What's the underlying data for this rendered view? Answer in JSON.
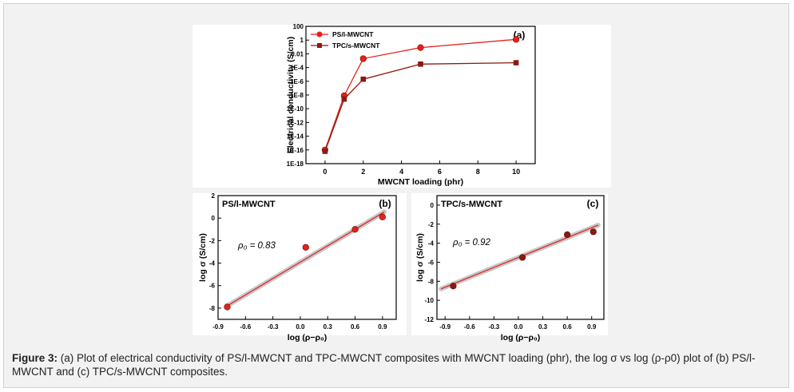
{
  "caption": {
    "label": "Figure 3:",
    "text": " (a) Plot of electrical conductivity of PS/l-MWCNT and TPC-MWCNT composites with MWCNT loading (phr), the log σ vs log (ρ-ρ0) plot of (b) PS/l-MWCNT and (c) TPC/s-MWCNT composites."
  },
  "colors": {
    "ps": "#e8201a",
    "tpc": "#8b1a10",
    "fit": "#e02020",
    "band": "#c8c8c8",
    "panel_bg": "#f2f2f2"
  },
  "chart_data": [
    {
      "panel_label": "(a)",
      "type": "line",
      "xlabel": "MWCNT loading (phr)",
      "ylabel": "Electrical conductivity (S/cm)",
      "xlim": [
        -1,
        11
      ],
      "xticks": [
        "0",
        "2",
        "4",
        "6",
        "8",
        "10"
      ],
      "y_scale": "log",
      "ylim_log10": [
        -18,
        2
      ],
      "yticks": [
        "100",
        "1",
        "0.01",
        "1E-4",
        "1E-6",
        "1E-8",
        "1E-10",
        "1E-12",
        "1E-14",
        "1E-16",
        "1E-18"
      ],
      "legend_position": "top-left",
      "series": [
        {
          "name": "PS/l-MWCNT",
          "marker": "circle",
          "x": [
            0,
            1,
            2,
            5,
            10
          ],
          "log10_y": [
            -16.0,
            -8.1,
            -2.7,
            -1.1,
            0.1
          ]
        },
        {
          "name": "TPC/s-MWCNT",
          "marker": "square",
          "x": [
            0,
            1,
            2,
            5,
            10
          ],
          "log10_y": [
            -16.2,
            -8.6,
            -5.7,
            -3.5,
            -3.3
          ]
        }
      ]
    },
    {
      "panel_label": "(b)",
      "title": "PS/l-MWCNT",
      "type": "scatter",
      "xlabel": "log (ρ−ρ₀)",
      "ylabel": "log σ (S/cm)",
      "annotation": "ρ₀ = 0.83",
      "xlim": [
        -0.9,
        1.05
      ],
      "ylim": [
        -9,
        2
      ],
      "xticks": [
        "-0.9",
        "-0.6",
        "-0.3",
        "0.0",
        "0.3",
        "0.6",
        "0.9"
      ],
      "yticks": [
        "2",
        "0",
        "-2",
        "-4",
        "-6",
        "-8"
      ],
      "points": {
        "x": [
          -0.8,
          0.06,
          0.6,
          0.9
        ],
        "y": [
          -7.9,
          -2.6,
          -1.0,
          0.1
        ]
      },
      "fit": {
        "x": [
          -0.8,
          0.92
        ],
        "y": [
          -7.8,
          0.55
        ]
      }
    },
    {
      "panel_label": "(c)",
      "title": "TPC/s-MWCNT",
      "type": "scatter",
      "xlabel": "log (ρ−ρ₀)",
      "ylabel": "log σ (S/cm)",
      "annotation": "ρ₀ = 0.92",
      "xlim": [
        -1.0,
        1.05
      ],
      "ylim": [
        -12,
        1
      ],
      "xticks": [
        "-0.9",
        "-0.6",
        "-0.3",
        "0.0",
        "0.3",
        "0.6",
        "0.9"
      ],
      "yticks": [
        "0",
        "-2",
        "-4",
        "-6",
        "-8",
        "-10",
        "-12"
      ],
      "points": {
        "x": [
          -0.8,
          0.05,
          0.6,
          0.92
        ],
        "y": [
          -8.5,
          -5.5,
          -3.1,
          -2.8
        ]
      },
      "fit": {
        "x": [
          -0.95,
          0.98
        ],
        "y": [
          -8.8,
          -2.1
        ]
      }
    }
  ]
}
